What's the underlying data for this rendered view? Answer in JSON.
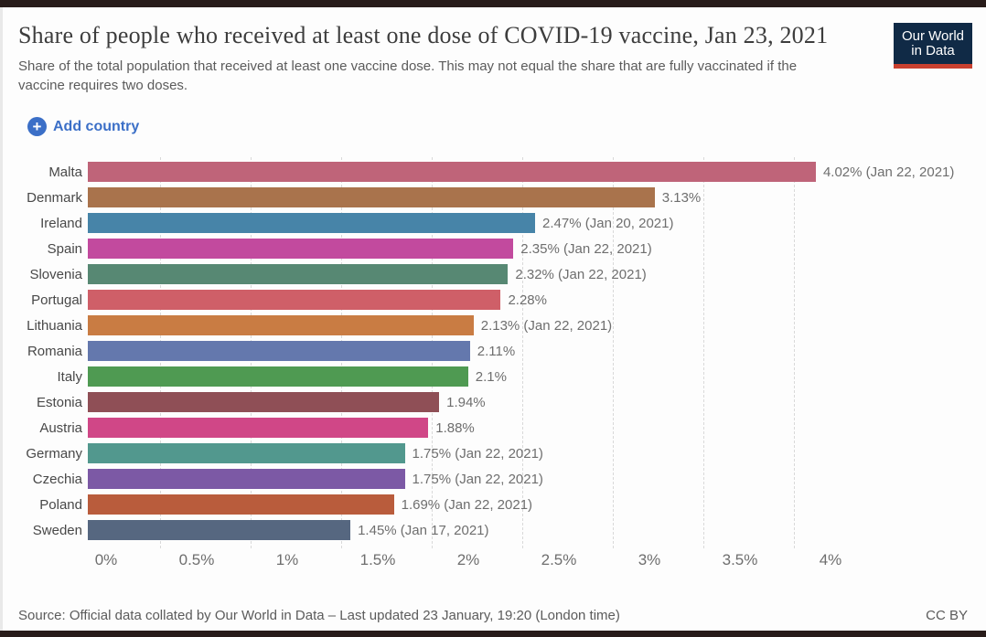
{
  "header": {
    "title": "Share of people who received at least one dose of COVID-19 vaccine, Jan 23, 2021",
    "subtitle": "Share of the total population that received at least one vaccine dose. This may not equal the share that are fully vaccinated if the vaccine requires two doses.",
    "logo": {
      "line1": "Our World",
      "line2": "in Data"
    },
    "add_country_label": "Add country"
  },
  "icons": {
    "add_country_plus": "+"
  },
  "colors": {
    "accent_blue": "#3b6fc7",
    "logo_navy": "#102a46",
    "logo_red": "#c9402f",
    "frame_strip": "#281c1a",
    "gridline": "#d9d9d9"
  },
  "chart_data": {
    "type": "bar",
    "orientation": "horizontal",
    "title": "Share of people who received at least one dose of COVID-19 vaccine, Jan 23, 2021",
    "xlabel": "",
    "ylabel": "",
    "xlim": [
      0,
      4.35
    ],
    "grid": "vertical-dashed",
    "legend": "none",
    "categories": [
      "Malta",
      "Denmark",
      "Ireland",
      "Spain",
      "Slovenia",
      "Portugal",
      "Lithuania",
      "Romania",
      "Italy",
      "Estonia",
      "Austria",
      "Germany",
      "Czechia",
      "Poland",
      "Sweden"
    ],
    "values": [
      4.02,
      3.13,
      2.47,
      2.35,
      2.32,
      2.28,
      2.13,
      2.11,
      2.1,
      1.94,
      1.88,
      1.75,
      1.75,
      1.69,
      1.45
    ],
    "bars": [
      {
        "country": "Malta",
        "value": 4.02,
        "label": "4.02% (Jan 22, 2021)",
        "color": "#bf6479"
      },
      {
        "country": "Denmark",
        "value": 3.13,
        "label": "3.13%",
        "color": "#a9734c"
      },
      {
        "country": "Ireland",
        "value": 2.47,
        "label": "2.47% (Jan 20, 2021)",
        "color": "#4784a8"
      },
      {
        "country": "Spain",
        "value": 2.35,
        "label": "2.35% (Jan 22, 2021)",
        "color": "#c24a9e"
      },
      {
        "country": "Slovenia",
        "value": 2.32,
        "label": "2.32% (Jan 22, 2021)",
        "color": "#578873"
      },
      {
        "country": "Portugal",
        "value": 2.28,
        "label": "2.28%",
        "color": "#cf5f68"
      },
      {
        "country": "Lithuania",
        "value": 2.13,
        "label": "2.13% (Jan 22, 2021)",
        "color": "#c97c43"
      },
      {
        "country": "Romania",
        "value": 2.11,
        "label": "2.11%",
        "color": "#6478ad"
      },
      {
        "country": "Italy",
        "value": 2.1,
        "label": "2.1%",
        "color": "#4f9a52"
      },
      {
        "country": "Estonia",
        "value": 1.94,
        "label": "1.94%",
        "color": "#8f4f56"
      },
      {
        "country": "Austria",
        "value": 1.88,
        "label": "1.88%",
        "color": "#d04787"
      },
      {
        "country": "Germany",
        "value": 1.75,
        "label": "1.75% (Jan 22, 2021)",
        "color": "#52988e"
      },
      {
        "country": "Czechia",
        "value": 1.75,
        "label": "1.75% (Jan 22, 2021)",
        "color": "#7c59a5"
      },
      {
        "country": "Poland",
        "value": 1.69,
        "label": "1.69% (Jan 22, 2021)",
        "color": "#b95c3c"
      },
      {
        "country": "Sweden",
        "value": 1.45,
        "label": "1.45% (Jan 17, 2021)",
        "color": "#566780"
      }
    ],
    "x_ticks": [
      {
        "value": 0,
        "label": "0%"
      },
      {
        "value": 0.5,
        "label": "0.5%"
      },
      {
        "value": 1,
        "label": "1%"
      },
      {
        "value": 1.5,
        "label": "1.5%"
      },
      {
        "value": 2,
        "label": "2%"
      },
      {
        "value": 2.5,
        "label": "2.5%"
      },
      {
        "value": 3,
        "label": "3%"
      },
      {
        "value": 3.5,
        "label": "3.5%"
      },
      {
        "value": 4,
        "label": "4%"
      }
    ]
  },
  "footer": {
    "source": "Source: Official data collated by Our World in Data – Last updated 23 January, 19:20 (London time)",
    "license": "CC BY"
  }
}
